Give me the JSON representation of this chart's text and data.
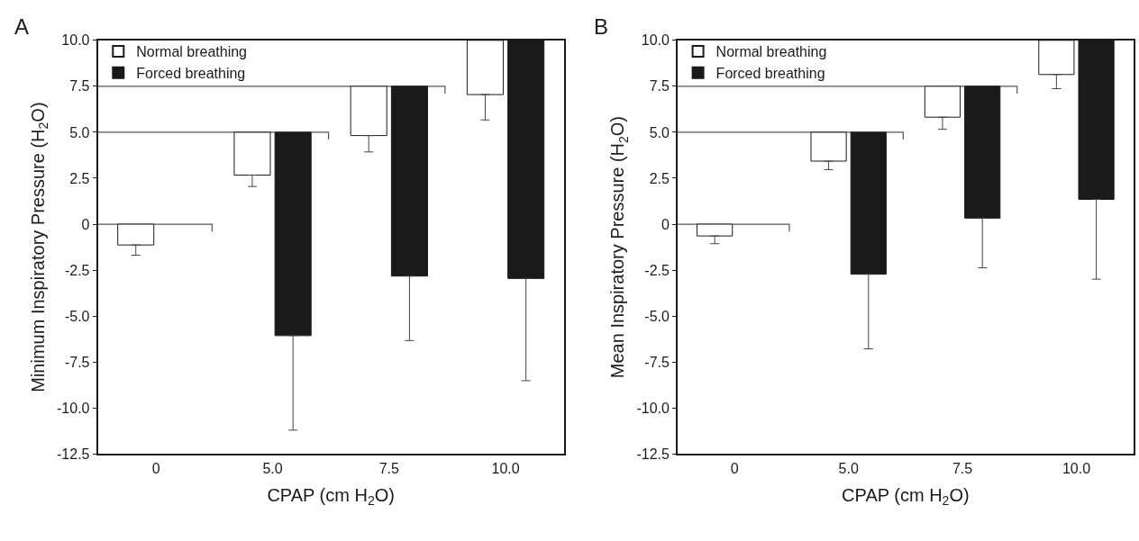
{
  "chart_data": [
    {
      "type": "bar",
      "annotations": [
        "A"
      ],
      "xlabel": "CPAP (cm H$_{2}$O)",
      "ylabel": "Minimum Inspiratory Pressure (H$_{2}$O)",
      "categories": [
        "0",
        "5.0",
        "7.5",
        "10.0"
      ],
      "series": [
        {
          "name": "Normal breathing",
          "color": "#ffffff",
          "base": [
            0,
            5,
            7.5,
            10
          ],
          "values": [
            -1.13,
            -2.33,
            -2.68,
            -2.95
          ],
          "errors": [
            [
              -1.69,
              -1.13
            ],
            [
              2.05,
              2.67
            ],
            [
              3.93,
              4.82
            ],
            [
              5.67,
              7.05
            ]
          ]
        },
        {
          "name": "Forced breathing",
          "color": "#1a1a1a",
          "base": [
            null,
            5,
            7.5,
            10
          ],
          "values": [
            null,
            -11.06,
            -10.32,
            -12.95
          ],
          "errors": [
            null,
            [
              -11.2,
              -6.06
            ],
            [
              -6.33,
              -2.82
            ],
            [
              -8.51,
              -2.95
            ]
          ]
        }
      ],
      "ylim": [
        -12.5,
        10
      ],
      "yticks": [
        {
          "value": -12.5,
          "label": "-12.5"
        },
        {
          "value": -10,
          "label": "-10.0"
        },
        {
          "value": -7.5,
          "label": "-7.5"
        },
        {
          "value": -5,
          "label": "-5.0"
        },
        {
          "value": -2.5,
          "label": "-2.5"
        },
        0,
        {
          "value": 2.5,
          "label": "2.5"
        },
        {
          "value": 5,
          "label": "5.0"
        },
        {
          "value": 7.5,
          "label": "7.5"
        },
        {
          "value": 10,
          "label": "10.0"
        }
      ],
      "ref_lines": [
        {
          "axis": "y",
          "value": 0,
          "color": "#555555"
        },
        {
          "axis": "y",
          "value": 5,
          "color": "#555555"
        },
        {
          "axis": "y",
          "value": 7.5,
          "color": "#555555"
        }
      ],
      "legend": "top left",
      "grid": false
    },
    {
      "type": "bar",
      "annotations": [
        "B"
      ],
      "xlabel": "CPAP (cm H$_{2}$O)",
      "ylabel": "Mean Inspiratory Pressure (H$_{2}$O)",
      "categories": [
        "0",
        "5.0",
        "7.5",
        "10.0"
      ],
      "series": [
        {
          "name": "Normal breathing",
          "color": "#ffffff",
          "base": [
            0,
            5,
            7.5,
            10
          ],
          "values": [
            -0.64,
            -1.57,
            -1.68,
            -1.86
          ],
          "errors": [
            [
              -1.06,
              -0.64
            ],
            [
              2.97,
              3.43
            ],
            [
              5.16,
              5.82
            ],
            [
              7.37,
              8.14
            ]
          ]
        },
        {
          "name": "Forced breathing",
          "color": "#1a1a1a",
          "base": [
            null,
            5,
            7.5,
            10
          ],
          "values": [
            null,
            -7.72,
            -7.17,
            -8.65
          ],
          "errors": [
            null,
            [
              -6.78,
              -2.72
            ],
            [
              -2.37,
              0.33
            ],
            [
              -2.99,
              1.35
            ]
          ]
        }
      ],
      "ylim": [
        -12.5,
        10
      ],
      "yticks": [
        {
          "value": -12.5,
          "label": "-12.5"
        },
        {
          "value": -10,
          "label": "-10.0"
        },
        {
          "value": -7.5,
          "label": "-7.5"
        },
        {
          "value": -5,
          "label": "-5.0"
        },
        {
          "value": -2.5,
          "label": "-2.5"
        },
        0,
        {
          "value": 2.5,
          "label": "2.5"
        },
        {
          "value": 5,
          "label": "5.0"
        },
        {
          "value": 7.5,
          "label": "7.5"
        },
        {
          "value": 10,
          "label": "10.0"
        }
      ],
      "ref_lines": [
        {
          "axis": "y",
          "value": 0,
          "color": "#555555"
        },
        {
          "axis": "y",
          "value": 5,
          "color": "#555555"
        },
        {
          "axis": "y",
          "value": 7.5,
          "color": "#555555"
        }
      ],
      "legend": "top left",
      "grid": false
    }
  ]
}
